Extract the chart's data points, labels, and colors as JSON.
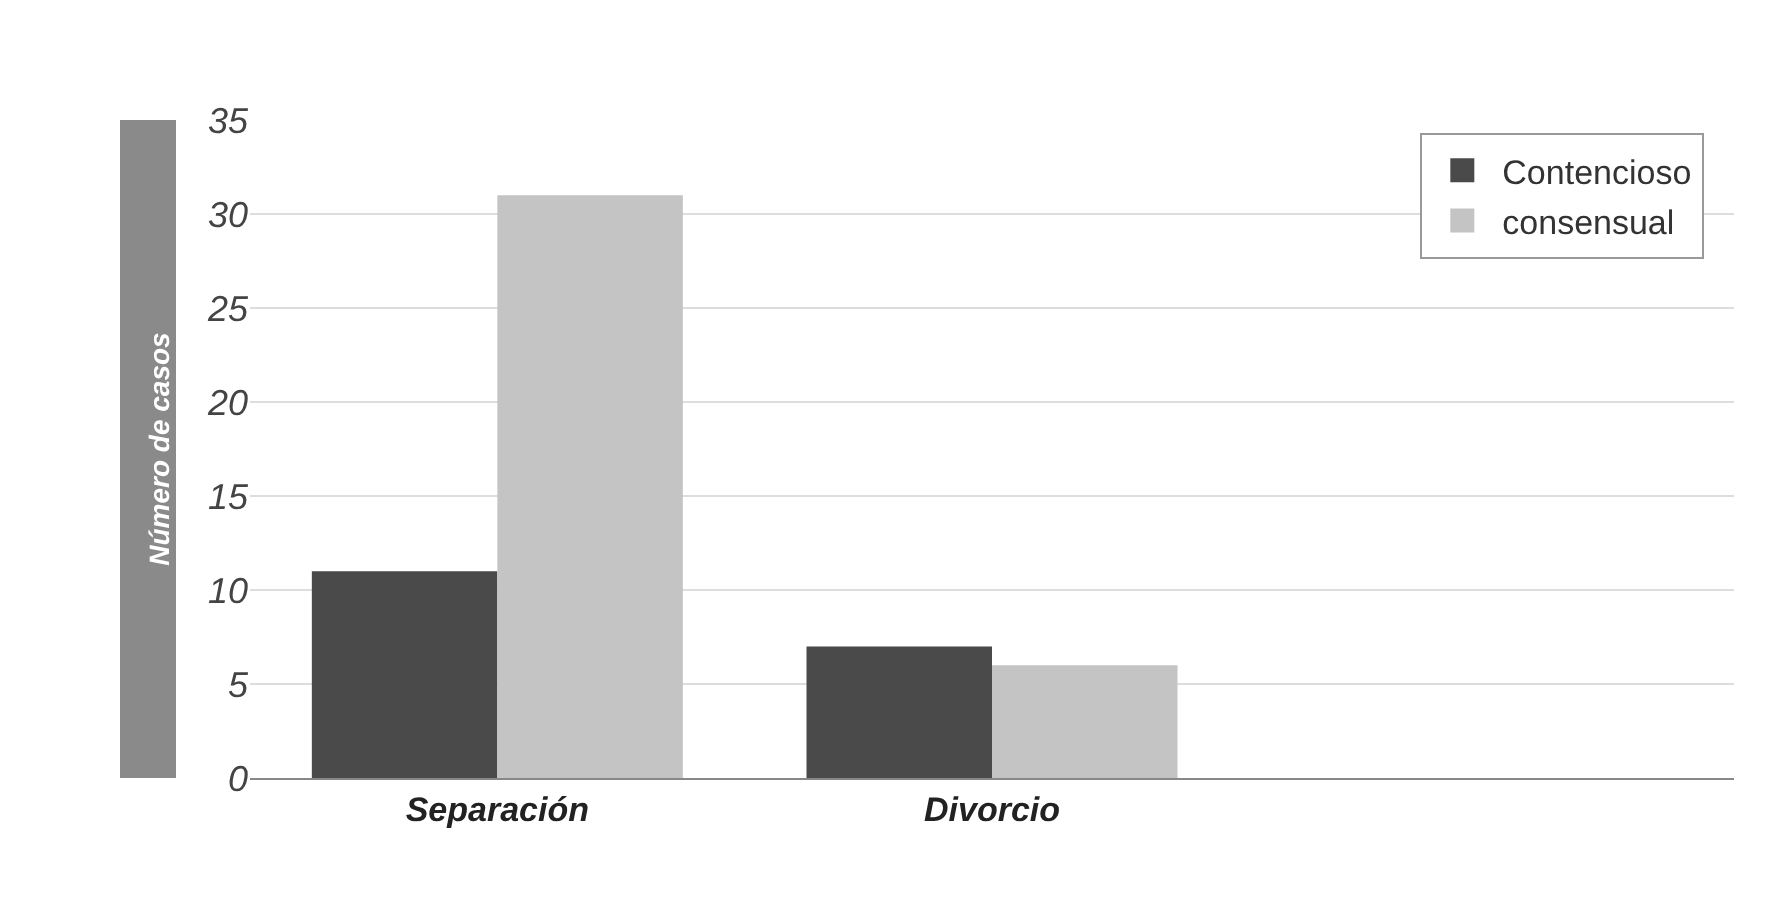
{
  "chart_data": {
    "type": "bar",
    "ylabel": "Número de casos",
    "categories": [
      "Separación",
      "Divorcio"
    ],
    "series": [
      {
        "name": "Contencioso",
        "color": "#4a4a4a",
        "values": [
          11,
          7
        ]
      },
      {
        "name": "consensual",
        "color": "#c4c4c4",
        "values": [
          31,
          6
        ]
      }
    ],
    "ylim": [
      0,
      35
    ],
    "yticks": [
      0,
      5,
      10,
      15,
      20,
      25,
      30,
      35
    ],
    "grid": "y",
    "legend": "top right"
  }
}
